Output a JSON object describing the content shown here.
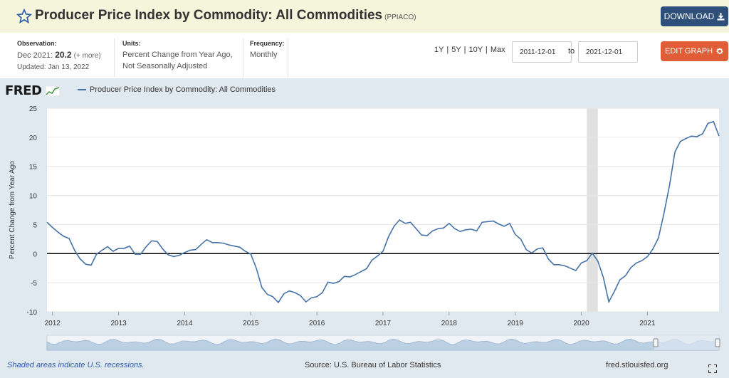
{
  "header": {
    "title": "Producer Price Index by Commodity: All Commodities",
    "series_id": "(PPIACO)",
    "download_label": "DOWNLOAD"
  },
  "meta": {
    "observation_label": "Observation:",
    "observation_date": "Dec 2021:",
    "observation_value": "20.2",
    "observation_more": "(+ more)",
    "updated": "Updated: Jan 13, 2022",
    "units_label": "Units:",
    "units_line1": "Percent Change from Year Ago,",
    "units_line2": "Not Seasonally Adjusted",
    "frequency_label": "Frequency:",
    "frequency_value": "Monthly"
  },
  "controls": {
    "ranges": [
      "1Y",
      "5Y",
      "10Y",
      "Max"
    ],
    "start_date": "2011-12-01",
    "to_label": "to",
    "end_date": "2021-12-01",
    "edit_label": "EDIT GRAPH"
  },
  "legend": {
    "logo": "FRED",
    "series_label": "Producer Price Index by Commodity: All Commodities"
  },
  "colors": {
    "series": "#4572a7",
    "recession": "#e1e1e1",
    "download_bg": "#2d4f7a",
    "edit_bg": "#e15d38"
  },
  "footer": {
    "recession_note": "Shaded areas indicate U.S. recessions.",
    "source": "Source: U.S. Bureau of Labor Statistics",
    "site": "fred.stlouisfed.org"
  },
  "chart_data": {
    "type": "line",
    "title": "",
    "xlabel": "",
    "ylabel": "Percent Change from Year Ago",
    "ylim": [
      -10,
      25
    ],
    "yticks": [
      -10,
      -5,
      0,
      5,
      10,
      15,
      20,
      25
    ],
    "xticks": [
      "2012",
      "2013",
      "2014",
      "2015",
      "2016",
      "2017",
      "2018",
      "2019",
      "2020",
      "2021"
    ],
    "x_start": "2011-12",
    "x_end": "2021-12",
    "grid": "horizontal",
    "recessions": [
      {
        "start": "2020-02",
        "end": "2020-04"
      }
    ],
    "series": [
      {
        "name": "Producer Price Index by Commodity: All Commodities",
        "values": [
          5.4,
          4.5,
          3.7,
          3.0,
          2.6,
          0.6,
          -0.9,
          -1.8,
          -2.0,
          -0.1,
          0.6,
          1.2,
          0.4,
          0.9,
          0.9,
          1.3,
          -0.1,
          -0.1,
          1.2,
          2.2,
          2.1,
          0.8,
          -0.2,
          -0.5,
          -0.3,
          0.2,
          0.6,
          0.7,
          1.6,
          2.4,
          1.9,
          1.9,
          1.8,
          1.5,
          1.3,
          1.1,
          0.4,
          -0.1,
          -2.5,
          -5.8,
          -7.0,
          -7.4,
          -8.4,
          -6.9,
          -6.4,
          -6.7,
          -7.2,
          -8.3,
          -7.6,
          -7.4,
          -6.7,
          -4.9,
          -5.1,
          -4.8,
          -3.9,
          -4.0,
          -3.6,
          -3.1,
          -2.6,
          -1.1,
          -0.4,
          0.4,
          2.9,
          4.7,
          5.8,
          5.2,
          5.4,
          4.3,
          3.2,
          3.1,
          3.9,
          4.3,
          4.4,
          5.2,
          4.3,
          3.8,
          4.1,
          4.2,
          3.9,
          5.4,
          5.5,
          5.6,
          5.1,
          4.7,
          5.2,
          3.3,
          2.5,
          0.7,
          0.1,
          0.8,
          1.0,
          -0.9,
          -1.9,
          -1.9,
          -2.1,
          -2.5,
          -2.9,
          -1.6,
          -1.2,
          0.1,
          -1.3,
          -4.1,
          -8.3,
          -6.5,
          -4.5,
          -3.8,
          -2.4,
          -1.6,
          -1.2,
          -0.5,
          0.8,
          2.7,
          6.9,
          11.7,
          17.5,
          19.3,
          19.8,
          20.2,
          20.1,
          20.6,
          22.4,
          22.7,
          20.2
        ]
      }
    ]
  }
}
